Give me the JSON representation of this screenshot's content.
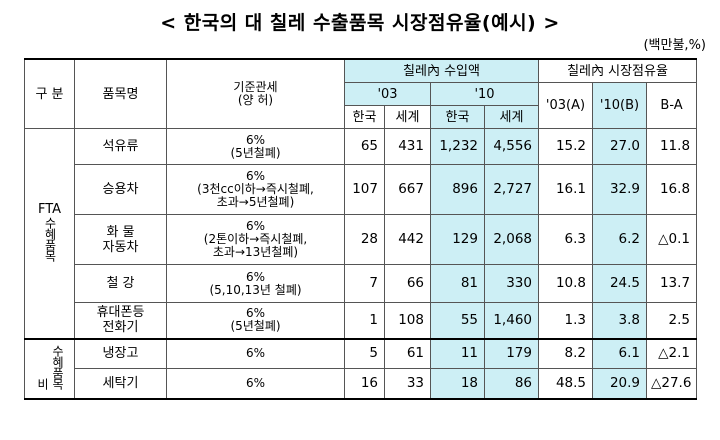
{
  "title": "< 한국의 대 칠레 수출품목 시장점유율(예시) >",
  "unit": "(백만불,%)",
  "headers": {
    "group": "구 분",
    "item": "품목명",
    "tariff_line1": "기준관세",
    "tariff_line2": "(양    허)",
    "import_amount": "칠레內 수입액",
    "market_share": "칠레內 시장점유율",
    "year03": "'03",
    "year10": "'10",
    "korea": "한국",
    "world": "세계",
    "share03": "'03(A)",
    "share10": "'10(B)",
    "diff": "B-A"
  },
  "groups": {
    "fta_label": "FTA",
    "fta_sub": "수혜품목",
    "non_label": "비",
    "non_sub": "수혜품목"
  },
  "rows": [
    {
      "item": "석유류",
      "tariff1": "6%",
      "tariff2": "(5년철폐)",
      "k03": "65",
      "w03": "431",
      "k10": "1,232",
      "w10": "4,556",
      "s03": "15.2",
      "s10": "27.0",
      "diff": "11.8"
    },
    {
      "item": "승용차",
      "tariff1": "6%",
      "tariff2": "(3천cc이하→즉시철폐,",
      "tariff3": "초과→5년철폐)",
      "k03": "107",
      "w03": "667",
      "k10": "896",
      "w10": "2,727",
      "s03": "16.1",
      "s10": "32.9",
      "diff": "16.8"
    },
    {
      "item": "화 물",
      "item2": "자동차",
      "tariff1": "6%",
      "tariff2": "(2톤이하→즉시철폐,",
      "tariff3": "초과→13년철폐)",
      "k03": "28",
      "w03": "442",
      "k10": "129",
      "w10": "2,068",
      "s03": "6.3",
      "s10": "6.2",
      "diff": "△0.1"
    },
    {
      "item": "철  강",
      "tariff1": "6%",
      "tariff2": "(5,10,13년 철폐)",
      "k03": "7",
      "w03": "66",
      "k10": "81",
      "w10": "330",
      "s03": "10.8",
      "s10": "24.5",
      "diff": "13.7"
    },
    {
      "item": "휴대폰등",
      "item2": "전화기",
      "tariff1": "6%",
      "tariff2": "(5년철폐)",
      "k03": "1",
      "w03": "108",
      "k10": "55",
      "w10": "1,460",
      "s03": "1.3",
      "s10": "3.8",
      "diff": "2.5"
    },
    {
      "item": "냉장고",
      "tariff1": "6%",
      "k03": "5",
      "w03": "61",
      "k10": "11",
      "w10": "179",
      "s03": "8.2",
      "s10": "6.1",
      "diff": "△2.1"
    },
    {
      "item": "세탁기",
      "tariff1": "6%",
      "k03": "16",
      "w03": "33",
      "k10": "18",
      "w10": "86",
      "s03": "48.5",
      "s10": "20.9",
      "diff": "△27.6"
    }
  ]
}
